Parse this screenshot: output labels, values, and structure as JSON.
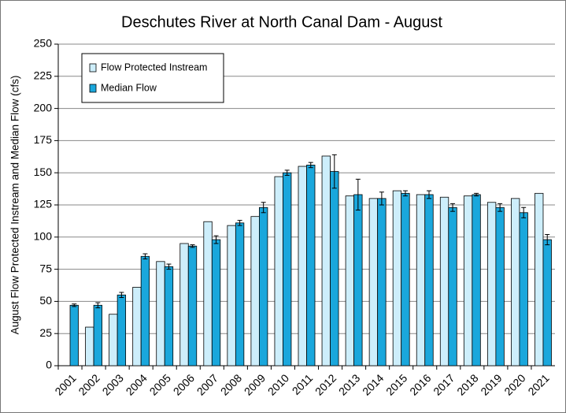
{
  "chart_data": {
    "type": "bar",
    "title": "Deschutes River at North Canal Dam - August",
    "y_label": "August Flow  Protected Instream and Median Flow (cfs)",
    "categories": [
      "2001",
      "2002",
      "2003",
      "2004",
      "2005",
      "2006",
      "2007",
      "2008",
      "2009",
      "2010",
      "2011",
      "2012",
      "2013",
      "2014",
      "2015",
      "2016",
      "2017",
      "2018",
      "2019",
      "2020",
      "2021"
    ],
    "series": [
      {
        "name": "Flow Protected Instream",
        "color": "#cdeefb",
        "values": [
          null,
          30,
          40,
          61,
          81,
          95,
          112,
          109,
          116,
          147,
          155,
          163,
          132,
          130,
          136,
          133,
          131,
          132,
          127,
          130,
          134
        ]
      },
      {
        "name": "Median Flow",
        "color": "#1aa7dc",
        "values": [
          47,
          47,
          55,
          85,
          77,
          93,
          98,
          111,
          123,
          150,
          156,
          151,
          133,
          130,
          134,
          133,
          123,
          133,
          123,
          119,
          98
        ],
        "errors": [
          1,
          2,
          2,
          2,
          2,
          1,
          3,
          2,
          4,
          2,
          2,
          13,
          12,
          5,
          2,
          3,
          3,
          1,
          3,
          4,
          4
        ]
      }
    ],
    "ylim": [
      0,
      250
    ],
    "yticks": [
      0,
      25,
      50,
      75,
      100,
      125,
      150,
      175,
      200,
      225,
      250
    ],
    "grid": true,
    "legend": "upper-left"
  }
}
